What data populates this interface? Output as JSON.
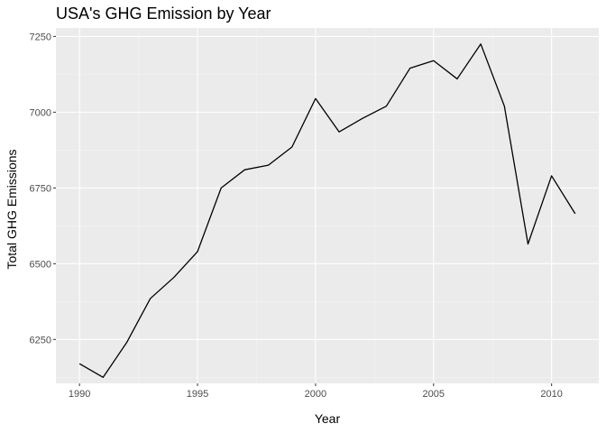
{
  "chart_data": {
    "type": "line",
    "title": "USA's GHG Emission by Year",
    "xlabel": "Year",
    "ylabel": "Total GHG Emissions",
    "x": [
      1990,
      1991,
      1992,
      1993,
      1994,
      1995,
      1996,
      1997,
      1998,
      1999,
      2000,
      2001,
      2002,
      2003,
      2004,
      2005,
      2006,
      2007,
      2008,
      2009,
      2010,
      2011
    ],
    "series": [
      {
        "values": [
          6170,
          6125,
          6240,
          6385,
          6455,
          6540,
          6750,
          6810,
          6825,
          6885,
          7045,
          6935,
          6980,
          7020,
          7145,
          7170,
          7110,
          7225,
          7020,
          6565,
          6790,
          6665
        ]
      }
    ],
    "xlim": [
      1989.0,
      2012.0
    ],
    "ylim": [
      6105,
      7278
    ],
    "x_ticks": [
      1990,
      1995,
      2000,
      2005,
      2010
    ],
    "y_ticks": [
      6250,
      6500,
      6750,
      7000,
      7250
    ],
    "x_tick_labels": [
      "1990",
      "1995",
      "2000",
      "2005",
      "2010"
    ],
    "y_tick_labels": [
      "6250",
      "6500",
      "6750",
      "7000",
      "7250"
    ],
    "grid": true,
    "legend": "none",
    "colors": {
      "panel": "#ebebeb",
      "grid_major": "#ffffff",
      "line": "#000000",
      "tick_label": "#4d4d4d"
    }
  }
}
